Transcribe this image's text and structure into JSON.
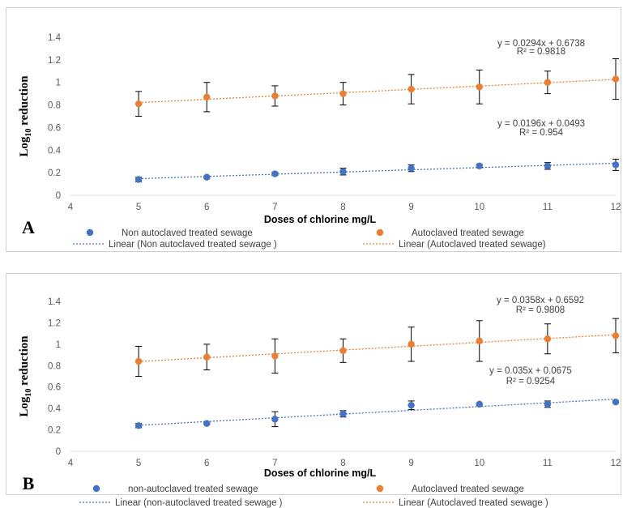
{
  "chart_data": [
    {
      "type": "scatter",
      "panel_label": "A",
      "xlabel": "Doses of chlorine mg/L",
      "ylabel": "Log10 reduction",
      "ylabel_main": "Log",
      "ylabel_sub": "10",
      "ylabel_rest": " reduction",
      "xlim": [
        4,
        12
      ],
      "ylim": [
        0,
        1.4
      ],
      "x_ticks": [
        "4",
        "5",
        "6",
        "7",
        "8",
        "9",
        "10",
        "11",
        "12"
      ],
      "y_ticks": [
        "0",
        "0.2",
        "0.4",
        "0.6",
        "0.8",
        "1",
        "1.2",
        "1.4"
      ],
      "grid": false,
      "legend_position": "bottom",
      "series": [
        {
          "name": "Non autoclaved treated sewage",
          "color": "#4472C4",
          "x": [
            5,
            6,
            7,
            8,
            9,
            10,
            11,
            12
          ],
          "y": [
            0.14,
            0.16,
            0.19,
            0.21,
            0.24,
            0.26,
            0.26,
            0.27
          ],
          "error": [
            0.02,
            0.01,
            0.015,
            0.03,
            0.03,
            0.015,
            0.03,
            0.05
          ],
          "trendline": {
            "label": "Linear (Non autoclaved treated sewage )",
            "slope": 0.0196,
            "intercept": 0.0493,
            "equation": "y = 0.0196x + 0.0493",
            "r2": "R² = 0.954"
          }
        },
        {
          "name": "Autoclaved treated sewage",
          "color": "#ED7D31",
          "x": [
            5,
            6,
            7,
            8,
            9,
            10,
            11,
            12
          ],
          "y": [
            0.81,
            0.87,
            0.88,
            0.9,
            0.94,
            0.96,
            1.0,
            1.03
          ],
          "error": [
            0.11,
            0.13,
            0.09,
            0.1,
            0.13,
            0.15,
            0.1,
            0.18
          ],
          "trendline": {
            "label": "Linear (Autoclaved treated sewage)",
            "slope": 0.0294,
            "intercept": 0.6738,
            "equation": "y = 0.0294x + 0.6738",
            "r2": "R² = 0.9818"
          }
        }
      ]
    },
    {
      "type": "scatter",
      "panel_label": "B",
      "xlabel": "Doses of chlorine mg/L",
      "ylabel": "Log10 reduction",
      "ylabel_main": "Log",
      "ylabel_sub": "10",
      "ylabel_rest": " reduction",
      "xlim": [
        4,
        12
      ],
      "ylim": [
        0,
        1.4
      ],
      "x_ticks": [
        "4",
        "5",
        "6",
        "7",
        "8",
        "9",
        "10",
        "11",
        "12"
      ],
      "y_ticks": [
        "0",
        "0.2",
        "0.4",
        "0.6",
        "0.8",
        "1",
        "1.2",
        "1.4"
      ],
      "grid": false,
      "legend_position": "bottom",
      "series": [
        {
          "name": "non-autoclaved treated sewage",
          "color": "#4472C4",
          "x": [
            5,
            6,
            7,
            8,
            9,
            10,
            11,
            12
          ],
          "y": [
            0.24,
            0.26,
            0.3,
            0.35,
            0.43,
            0.44,
            0.44,
            0.46
          ],
          "error": [
            0.02,
            0.01,
            0.07,
            0.03,
            0.04,
            0.01,
            0.03,
            0.01
          ],
          "trendline": {
            "label": "Linear (non-autoclaved treated sewage )",
            "slope": 0.035,
            "intercept": 0.0675,
            "equation": "y = 0.035x + 0.0675",
            "r2": "R² = 0.9254"
          }
        },
        {
          "name": "Autoclaved treated sewage",
          "color": "#ED7D31",
          "x": [
            5,
            6,
            7,
            8,
            9,
            10,
            11,
            12
          ],
          "y": [
            0.84,
            0.88,
            0.89,
            0.94,
            1.0,
            1.03,
            1.05,
            1.08
          ],
          "error": [
            0.14,
            0.12,
            0.16,
            0.11,
            0.16,
            0.19,
            0.14,
            0.16
          ],
          "trendline": {
            "label": "Linear (Autoclaved treated sewage )",
            "slope": 0.0358,
            "intercept": 0.6592,
            "equation": "y = 0.0358x + 0.6592",
            "r2": "R² = 0.9808"
          }
        }
      ]
    }
  ]
}
